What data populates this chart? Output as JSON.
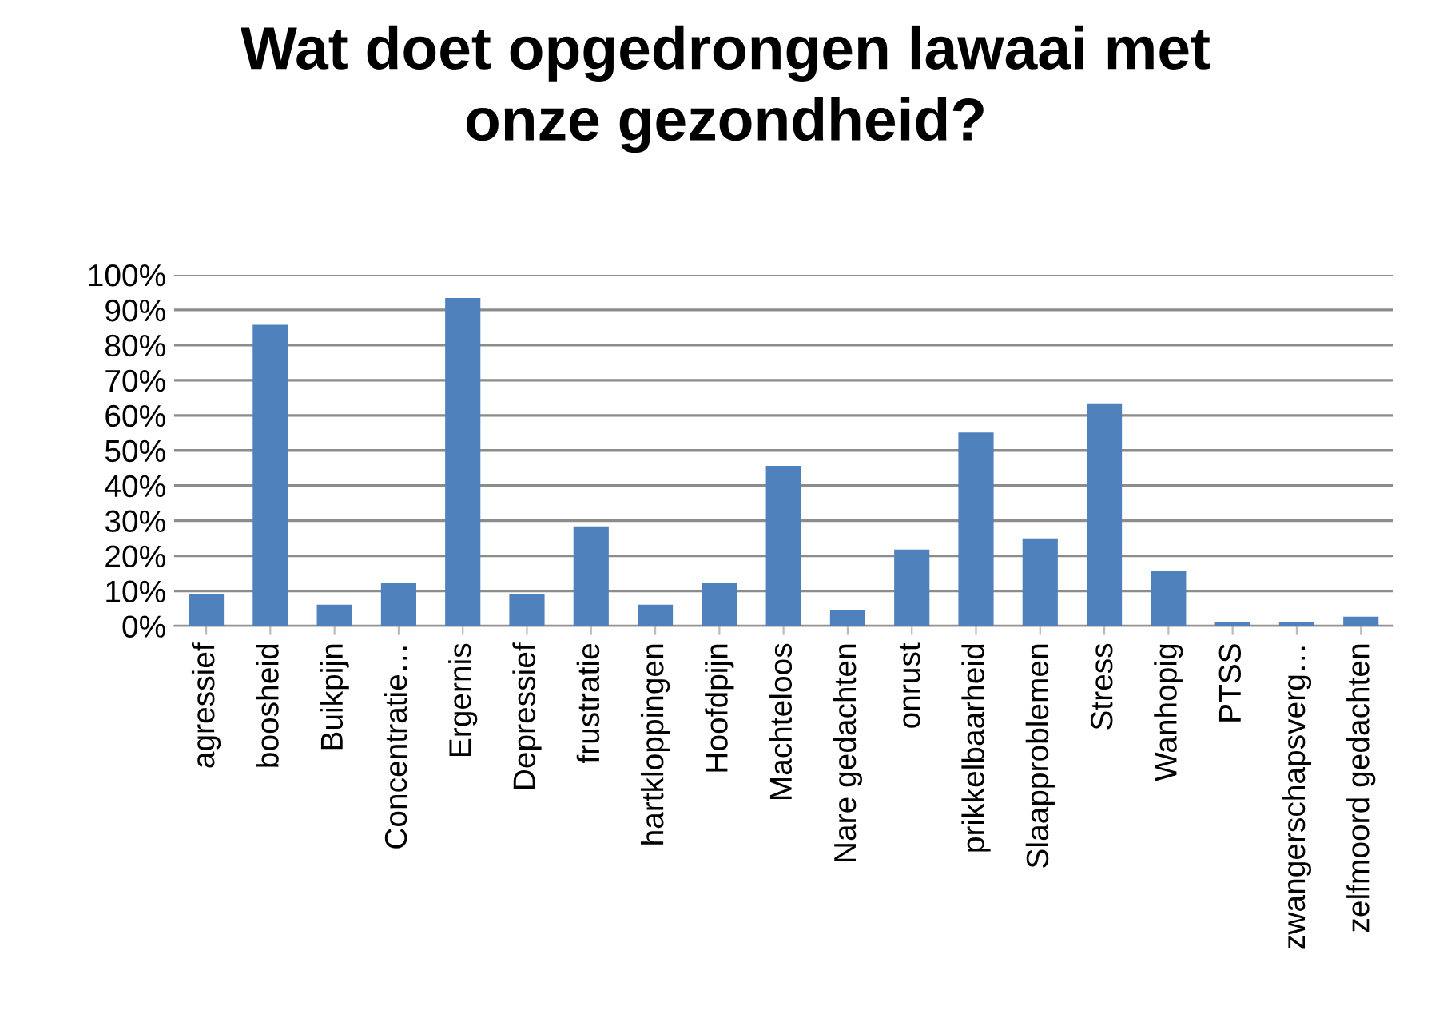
{
  "chart_data": {
    "type": "bar",
    "title": "Wat doet opgedrongen lawaai met\nonze gezondheid?",
    "categories": [
      "agressief",
      "boosheid",
      "Buikpijn",
      "Concentratie…",
      "Ergernis",
      "Depressief",
      "frustratie",
      "hartkloppingen",
      "Hoofdpijn",
      "Machteloos",
      "Nare gedachten",
      "onrust",
      "prikkelbaarheid",
      "Slaapproblemen",
      "Stress",
      "Wanhopig",
      "PTSS",
      "zwangerschapsverg…",
      "zelfmoord gedachten"
    ],
    "values": [
      9.0,
      85.8,
      6.1,
      12.2,
      93.4,
      9.0,
      28.4,
      6.1,
      12.2,
      45.6,
      4.6,
      21.8,
      55.1,
      25.0,
      63.4,
      15.6,
      1.2,
      1.2,
      2.7
    ],
    "color": "#4f81bd",
    "ylim": [
      0,
      100
    ],
    "yticks": [
      {
        "value": 0,
        "label": "0%"
      },
      {
        "value": 10,
        "label": "10%"
      },
      {
        "value": 20,
        "label": "20%"
      },
      {
        "value": 30,
        "label": "30%"
      },
      {
        "value": 40,
        "label": "40%"
      },
      {
        "value": 50,
        "label": "50%"
      },
      {
        "value": 60,
        "label": "60%"
      },
      {
        "value": 70,
        "label": "70%"
      },
      {
        "value": 80,
        "label": "80%"
      },
      {
        "value": 90,
        "label": "90%"
      },
      {
        "value": 100,
        "label": "100%"
      }
    ],
    "grid": "y",
    "legend": false
  }
}
